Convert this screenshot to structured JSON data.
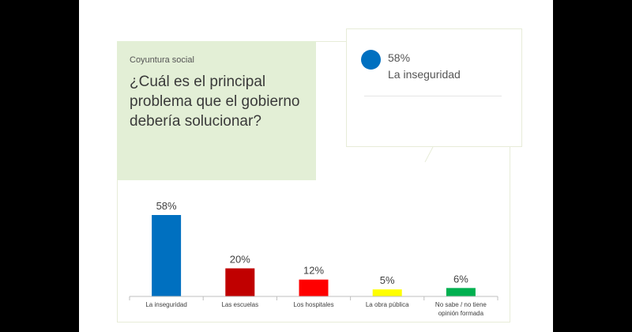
{
  "header": {
    "kicker": "Coyuntura social",
    "question": "¿Cuál es el principal problema que el gobierno debería solucionar?"
  },
  "callout": {
    "value": "58%",
    "label": "La inseguridad",
    "color": "#0070c0"
  },
  "chart_data": {
    "type": "bar",
    "title": "¿Cuál es el principal problema que el gobierno debería solucionar?",
    "categories": [
      "La inseguridad",
      "Las escuelas",
      "Los hospitales",
      "La obra pública",
      "No sabe / no tiene opinión formada"
    ],
    "category_lines": [
      [
        "La inseguridad"
      ],
      [
        "Las escuelas"
      ],
      [
        "Los hospitales"
      ],
      [
        "La obra pública"
      ],
      [
        "No sabe / no tiene",
        "opinión formada"
      ]
    ],
    "values": [
      58,
      20,
      12,
      5,
      6
    ],
    "value_labels": [
      "58%",
      "20%",
      "12%",
      "5%",
      "6%"
    ],
    "colors": [
      "#0070c0",
      "#c00000",
      "#ff0000",
      "#ffff00",
      "#00b050"
    ],
    "ylim": [
      0,
      58
    ],
    "xlabel": "",
    "ylabel": "",
    "grid": false,
    "legend": "none"
  }
}
